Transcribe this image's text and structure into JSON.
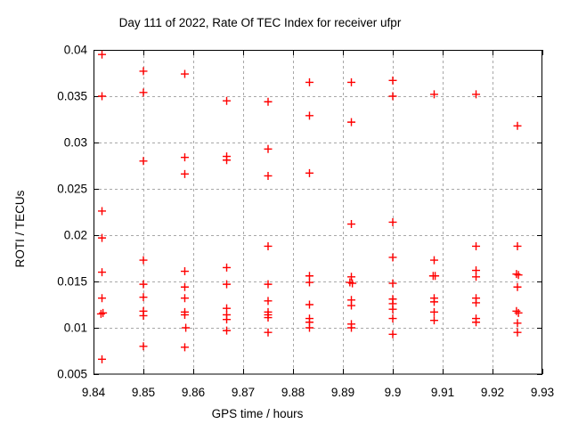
{
  "page": {
    "background": "#ffffff"
  },
  "chart_data": {
    "type": "scatter",
    "title": "Day 111 of 2022, Rate Of TEC Index for receiver ufpr",
    "xlabel": "GPS time / hours",
    "ylabel": "ROTI / TECUs",
    "xlim": [
      9.84,
      9.93
    ],
    "ylim": [
      0.005,
      0.04
    ],
    "xticks": [
      9.84,
      9.85,
      9.86,
      9.87,
      9.88,
      9.89,
      9.9,
      9.91,
      9.92,
      9.93
    ],
    "xtick_labels": [
      "9.84",
      "9.85",
      "9.86",
      "9.87",
      "9.88",
      "9.89",
      "9.9",
      "9.91",
      "9.92",
      "9.93"
    ],
    "yticks": [
      0.005,
      0.01,
      0.015,
      0.02,
      0.025,
      0.03,
      0.035,
      0.04
    ],
    "ytick_labels": [
      "0.005",
      "0.01",
      "0.015",
      "0.02",
      "0.025",
      "0.03",
      "0.035",
      "0.04"
    ],
    "grid": true,
    "legend": "none",
    "marker": "plus",
    "marker_color": "#ff0000",
    "grid_color": "#a8a8a8",
    "axis_color": "#000000",
    "series": [
      {
        "name": "ROTI",
        "points": [
          [
            9.8417,
            0.0395
          ],
          [
            9.8417,
            0.035
          ],
          [
            9.8417,
            0.0226
          ],
          [
            9.8417,
            0.0197
          ],
          [
            9.8417,
            0.016
          ],
          [
            9.8417,
            0.0132
          ],
          [
            9.8415,
            0.0115
          ],
          [
            9.8419,
            0.0116
          ],
          [
            9.8417,
            0.0066
          ],
          [
            9.85,
            0.0377
          ],
          [
            9.85,
            0.0354
          ],
          [
            9.85,
            0.028
          ],
          [
            9.85,
            0.0173
          ],
          [
            9.85,
            0.0147
          ],
          [
            9.85,
            0.0133
          ],
          [
            9.85,
            0.0118
          ],
          [
            9.85,
            0.0113
          ],
          [
            9.85,
            0.008
          ],
          [
            9.8583,
            0.0374
          ],
          [
            9.8583,
            0.0284
          ],
          [
            9.8583,
            0.0266
          ],
          [
            9.8583,
            0.0161
          ],
          [
            9.8583,
            0.0144
          ],
          [
            9.8583,
            0.0132
          ],
          [
            9.8583,
            0.0117
          ],
          [
            9.8583,
            0.0114
          ],
          [
            9.8585,
            0.01
          ],
          [
            9.8583,
            0.0079
          ],
          [
            9.8667,
            0.0345
          ],
          [
            9.8667,
            0.0285
          ],
          [
            9.8667,
            0.0281
          ],
          [
            9.8667,
            0.0165
          ],
          [
            9.8667,
            0.0147
          ],
          [
            9.8667,
            0.0121
          ],
          [
            9.8667,
            0.0114
          ],
          [
            9.8667,
            0.0109
          ],
          [
            9.8667,
            0.0097
          ],
          [
            9.875,
            0.0344
          ],
          [
            9.875,
            0.0293
          ],
          [
            9.875,
            0.0264
          ],
          [
            9.875,
            0.0188
          ],
          [
            9.875,
            0.0147
          ],
          [
            9.875,
            0.0129
          ],
          [
            9.875,
            0.0117
          ],
          [
            9.875,
            0.0114
          ],
          [
            9.875,
            0.0111
          ],
          [
            9.875,
            0.0095
          ],
          [
            9.8833,
            0.0365
          ],
          [
            9.8833,
            0.0329
          ],
          [
            9.8833,
            0.0267
          ],
          [
            9.8833,
            0.0156
          ],
          [
            9.8833,
            0.0149
          ],
          [
            9.8833,
            0.0125
          ],
          [
            9.8833,
            0.011
          ],
          [
            9.8833,
            0.0106
          ],
          [
            9.8833,
            0.01
          ],
          [
            9.8917,
            0.0365
          ],
          [
            9.8917,
            0.0322
          ],
          [
            9.8917,
            0.0212
          ],
          [
            9.8917,
            0.0155
          ],
          [
            9.8914,
            0.0149
          ],
          [
            9.8919,
            0.0148
          ],
          [
            9.8917,
            0.013
          ],
          [
            9.8917,
            0.0124
          ],
          [
            9.8917,
            0.0104
          ],
          [
            9.8917,
            0.01
          ],
          [
            9.9,
            0.0367
          ],
          [
            9.9,
            0.035
          ],
          [
            9.9,
            0.0214
          ],
          [
            9.9,
            0.0176
          ],
          [
            9.9,
            0.0148
          ],
          [
            9.9,
            0.0131
          ],
          [
            9.9,
            0.0126
          ],
          [
            9.9,
            0.012
          ],
          [
            9.9,
            0.011
          ],
          [
            9.9,
            0.0093
          ],
          [
            9.9083,
            0.0352
          ],
          [
            9.9083,
            0.0173
          ],
          [
            9.9081,
            0.0156
          ],
          [
            9.9085,
            0.0156
          ],
          [
            9.9083,
            0.0132
          ],
          [
            9.9083,
            0.0128
          ],
          [
            9.9083,
            0.0117
          ],
          [
            9.9083,
            0.0108
          ],
          [
            9.9167,
            0.0352
          ],
          [
            9.9167,
            0.0188
          ],
          [
            9.9167,
            0.0162
          ],
          [
            9.9167,
            0.0155
          ],
          [
            9.9167,
            0.0132
          ],
          [
            9.9167,
            0.0127
          ],
          [
            9.9167,
            0.011
          ],
          [
            9.9167,
            0.0106
          ],
          [
            9.925,
            0.0318
          ],
          [
            9.925,
            0.0188
          ],
          [
            9.9248,
            0.0158
          ],
          [
            9.9252,
            0.0157
          ],
          [
            9.925,
            0.0144
          ],
          [
            9.9248,
            0.0118
          ],
          [
            9.9252,
            0.0116
          ],
          [
            9.925,
            0.0105
          ],
          [
            9.925,
            0.0095
          ]
        ]
      }
    ]
  }
}
